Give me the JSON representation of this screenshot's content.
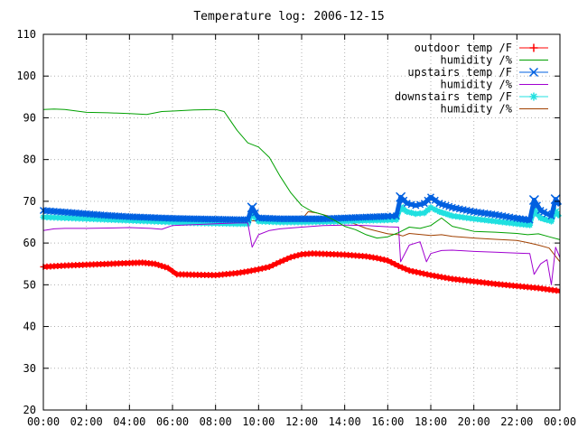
{
  "chart_data": {
    "type": "line",
    "title": "Temperature log: 2006-12-15",
    "xlabel": "",
    "ylabel": "",
    "ylim": [
      20,
      110
    ],
    "yticks": [
      20,
      30,
      40,
      50,
      60,
      70,
      80,
      90,
      100,
      110
    ],
    "xlim": [
      "00:00",
      "24:00"
    ],
    "xtick_labels": [
      "00:00",
      "02:00",
      "04:00",
      "06:00",
      "08:00",
      "10:00",
      "12:00",
      "14:00",
      "16:00",
      "18:00",
      "20:00",
      "22:00",
      "00:00"
    ],
    "grid": true,
    "legend_position": "top-right",
    "x_units": "hours",
    "series": [
      {
        "name": "outdoor temp /F",
        "color": "#ff0000",
        "marker": "plus",
        "x": [
          0,
          1,
          2,
          3,
          4,
          4.6,
          5.2,
          5.8,
          6.2,
          7,
          8,
          9,
          9.5,
          10,
          10.5,
          11,
          11.5,
          12,
          12.5,
          13,
          13.5,
          14,
          14.5,
          15,
          15.5,
          16,
          16.5,
          17,
          18,
          19,
          20,
          21,
          22,
          23,
          24
        ],
        "values": [
          54.3,
          54.6,
          54.8,
          55.0,
          55.2,
          55.3,
          55.0,
          54.0,
          52.5,
          52.4,
          52.3,
          52.8,
          53.2,
          53.7,
          54.3,
          55.5,
          56.6,
          57.3,
          57.5,
          57.4,
          57.3,
          57.2,
          57.0,
          56.8,
          56.4,
          55.8,
          54.5,
          53.4,
          52.3,
          51.4,
          50.8,
          50.2,
          49.7,
          49.2,
          48.5
        ]
      },
      {
        "name": "humidity /%",
        "color": "#00a000",
        "marker": "none",
        "x": [
          0,
          0.5,
          1,
          2,
          3,
          4,
          4.8,
          5.5,
          6,
          7,
          8,
          8.4,
          9,
          9.5,
          10,
          10.5,
          11,
          11.5,
          12,
          12.5,
          13,
          13.5,
          14,
          14.5,
          15,
          15.5,
          16,
          16.5,
          17,
          17.5,
          18,
          18.5,
          19,
          20,
          21,
          22,
          22.5,
          23,
          23.5,
          24
        ],
        "values": [
          92,
          92.1,
          92,
          91.3,
          91.2,
          91,
          90.8,
          91.5,
          91.6,
          91.9,
          92,
          91.5,
          87,
          84,
          83,
          80.5,
          76,
          72,
          69,
          67.5,
          66.8,
          65.5,
          64,
          63.2,
          62,
          61.2,
          61.5,
          62.5,
          63.8,
          63.5,
          64.2,
          66,
          64,
          62.8,
          62.6,
          62.3,
          62,
          62.2,
          61.5,
          60.8
        ]
      },
      {
        "name": "upstairs temp /F",
        "color": "#0060e0",
        "marker": "x",
        "x": [
          0,
          1,
          2,
          3,
          4,
          5,
          6,
          7,
          8,
          9,
          9.5,
          9.7,
          10,
          11,
          12,
          13,
          14,
          15,
          16,
          16.4,
          16.6,
          16.9,
          17.3,
          17.7,
          18,
          18.4,
          19,
          20,
          21,
          22,
          22.6,
          22.8,
          23.1,
          23.4,
          23.6,
          23.8,
          24
        ],
        "values": [
          67.8,
          67.4,
          67.0,
          66.6,
          66.3,
          66.1,
          65.9,
          65.8,
          65.7,
          65.6,
          65.6,
          68.5,
          66.0,
          65.8,
          65.8,
          65.8,
          66.0,
          66.2,
          66.4,
          66.5,
          71.0,
          69.5,
          69.0,
          69.5,
          71.0,
          69.5,
          68.5,
          67.5,
          66.8,
          65.9,
          65.5,
          70.3,
          67.8,
          67.0,
          66.5,
          70.5,
          69.0
        ]
      },
      {
        "name": "humidity /%",
        "color": "#a000d0",
        "marker": "none",
        "x": [
          0,
          0.5,
          1,
          2,
          3,
          4,
          5,
          5.5,
          6,
          7,
          8,
          9,
          9.5,
          9.7,
          10,
          10.5,
          11,
          12,
          13,
          14,
          15,
          16,
          16.5,
          16.6,
          17,
          17.5,
          17.8,
          18,
          18.5,
          19,
          20,
          21,
          22,
          22.6,
          22.8,
          23.1,
          23.4,
          23.6,
          23.8,
          24
        ],
        "values": [
          63,
          63.4,
          63.5,
          63.5,
          63.6,
          63.7,
          63.5,
          63.3,
          64.2,
          64.4,
          64.6,
          64.8,
          64.8,
          59,
          62,
          63,
          63.4,
          63.8,
          64.2,
          64.3,
          64.2,
          63.9,
          63.8,
          55.5,
          59.5,
          60.3,
          55.5,
          57.5,
          58.2,
          58.3,
          58,
          57.8,
          57.6,
          57.5,
          52.5,
          55,
          56,
          50,
          59,
          56.5
        ]
      },
      {
        "name": "downstairs temp /F",
        "color": "#20e0e0",
        "marker": "star",
        "x": [
          0,
          1,
          2,
          3,
          4,
          5,
          6,
          7,
          8,
          9,
          9.5,
          9.7,
          10,
          11,
          12,
          13,
          14,
          15,
          16,
          16.4,
          16.6,
          16.9,
          17.3,
          17.7,
          18,
          18.4,
          19,
          20,
          21,
          22,
          22.6,
          22.8,
          23.1,
          23.4,
          23.6,
          23.8,
          24
        ],
        "values": [
          66.2,
          66.0,
          65.8,
          65.6,
          65.4,
          65.2,
          65.0,
          64.8,
          64.7,
          64.6,
          64.6,
          67.0,
          65.2,
          65.0,
          65.0,
          65.1,
          65.2,
          65.4,
          65.5,
          65.6,
          68.5,
          67.5,
          67.0,
          67.2,
          68.5,
          67.5,
          66.5,
          65.8,
          65.2,
          64.6,
          64.3,
          67.8,
          66.0,
          65.5,
          65.2,
          67.5,
          66.2
        ]
      },
      {
        "name": "humidity /%",
        "color": "#a04000",
        "marker": "none",
        "x": [
          0,
          1,
          2,
          3,
          4,
          5,
          6,
          7,
          8,
          9,
          9.5,
          10,
          11,
          12,
          12.3,
          12.7,
          13,
          14,
          15,
          16,
          16.5,
          16.7,
          17,
          18,
          18.5,
          19,
          20,
          21,
          22,
          22.5,
          23,
          23.5,
          24
        ],
        "values": [
          65.8,
          65.7,
          65.7,
          65.6,
          65.6,
          65.5,
          65.5,
          65.5,
          65.6,
          65.6,
          65.5,
          65.2,
          65.4,
          65.6,
          67.5,
          67.2,
          66.8,
          65.5,
          63.5,
          62.2,
          62.0,
          61.7,
          62.3,
          61.8,
          62.0,
          61.6,
          61.2,
          60.9,
          60.6,
          60.1,
          59.5,
          58.8,
          55.5
        ]
      }
    ]
  }
}
